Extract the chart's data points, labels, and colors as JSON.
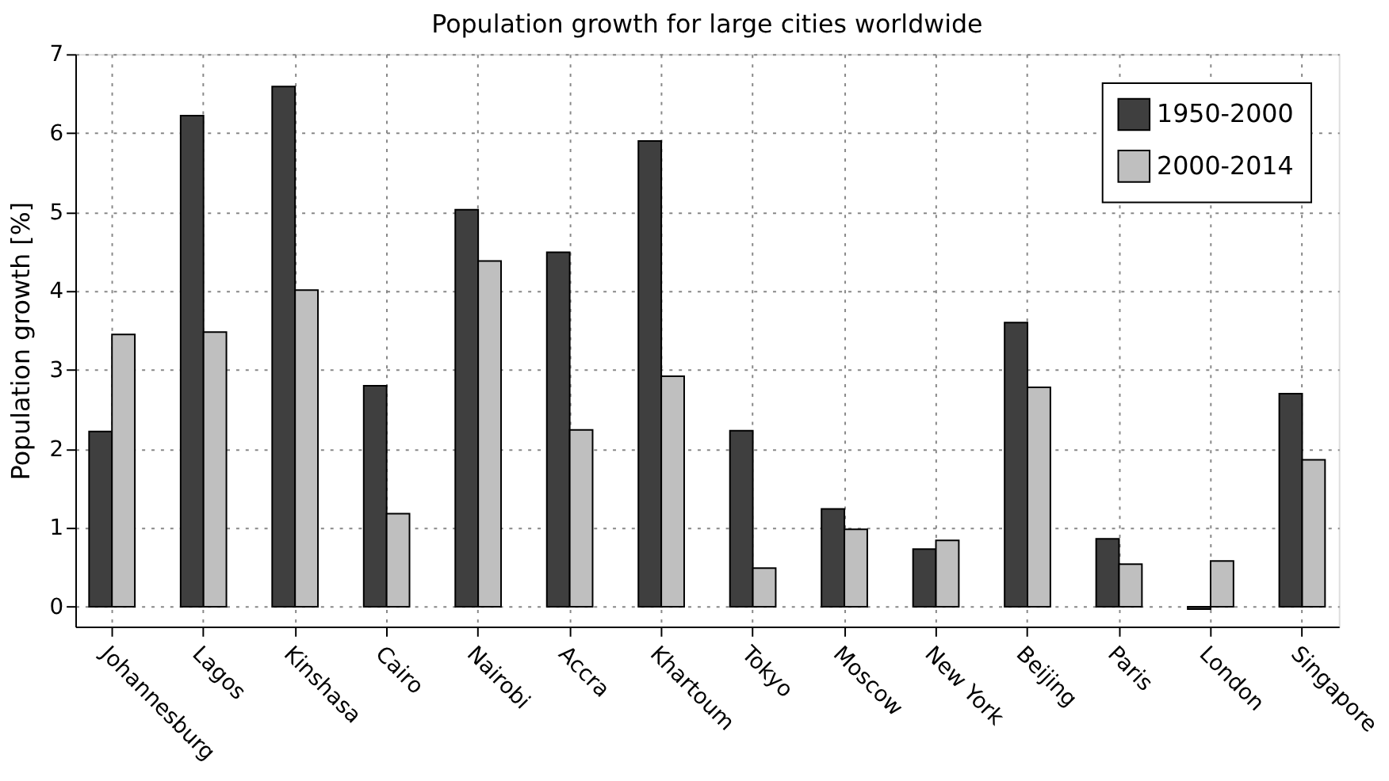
{
  "chart_data": {
    "type": "bar",
    "title": "Population growth for large cities worldwide",
    "ylabel": "Population growth [%]",
    "categories": [
      "Johannesburg",
      "Lagos",
      "Kinshasa",
      "Cairo",
      "Nairobi",
      "Accra",
      "Khartoum",
      "Tokyo",
      "Moscow",
      "New York",
      "Beijing",
      "Paris",
      "London",
      "Singapore"
    ],
    "series": [
      {
        "name": "1950-2000",
        "color": "#3f3f3f",
        "values": [
          2.22,
          6.22,
          6.59,
          2.8,
          5.03,
          4.49,
          5.9,
          2.23,
          1.24,
          0.73,
          3.6,
          0.86,
          -0.03,
          2.7
        ]
      },
      {
        "name": "2000-2014",
        "color": "#bfbfbf",
        "values": [
          3.45,
          3.48,
          4.01,
          1.18,
          4.38,
          2.24,
          2.92,
          0.49,
          0.98,
          0.84,
          2.78,
          0.54,
          0.58,
          1.86
        ]
      }
    ],
    "ylim": [
      -0.25,
      7
    ],
    "yticks": [
      0,
      1,
      2,
      3,
      4,
      5,
      6,
      7
    ],
    "grid": true,
    "legend": "top right"
  }
}
